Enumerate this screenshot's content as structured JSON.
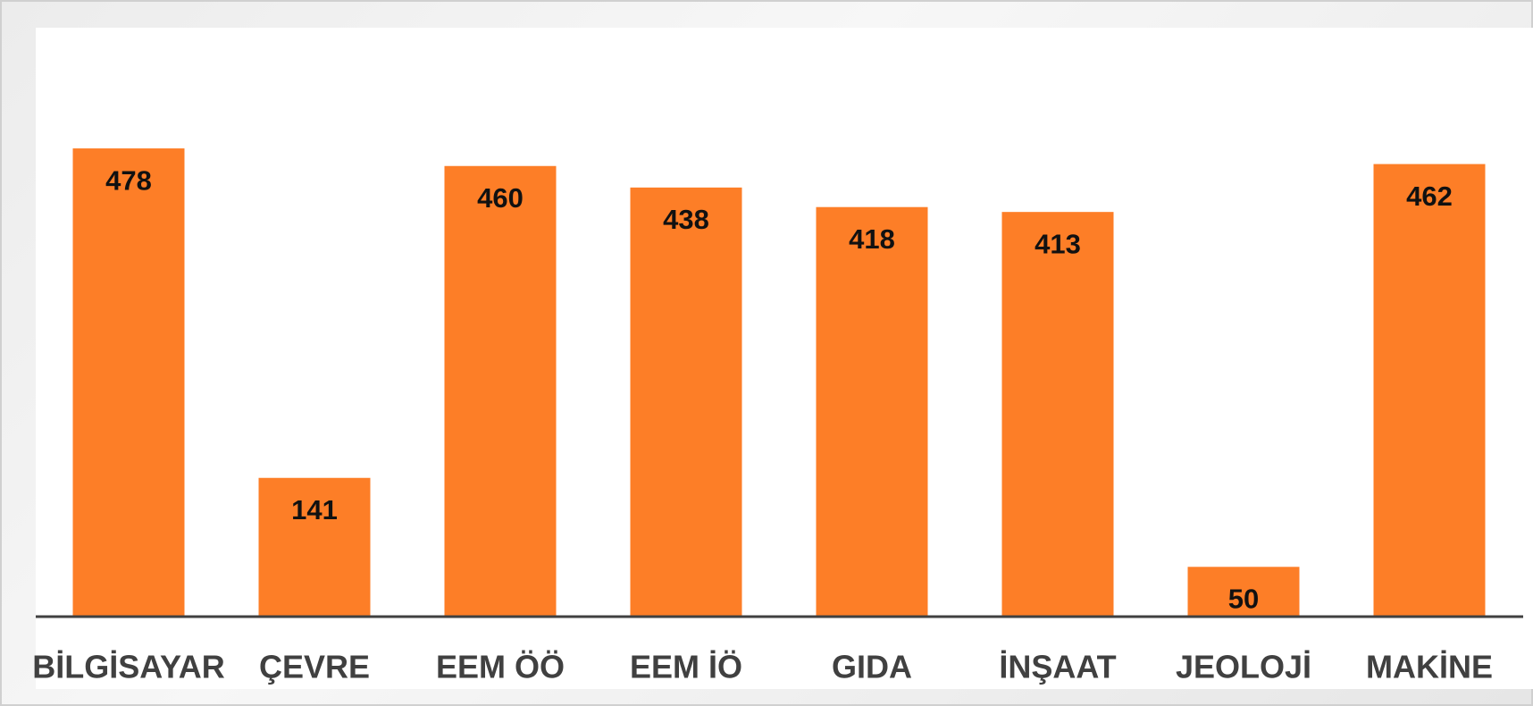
{
  "chart_data": {
    "type": "bar",
    "categories": [
      "BİLGİSAYAR",
      "ÇEVRE",
      "EEM ÖÖ",
      "EEM İÖ",
      "GIDA",
      "İNŞAAT",
      "JEOLOJİ",
      "MAKİNE"
    ],
    "values": [
      478,
      141,
      460,
      438,
      418,
      413,
      50,
      462
    ],
    "color": "#fd7e27"
  }
}
